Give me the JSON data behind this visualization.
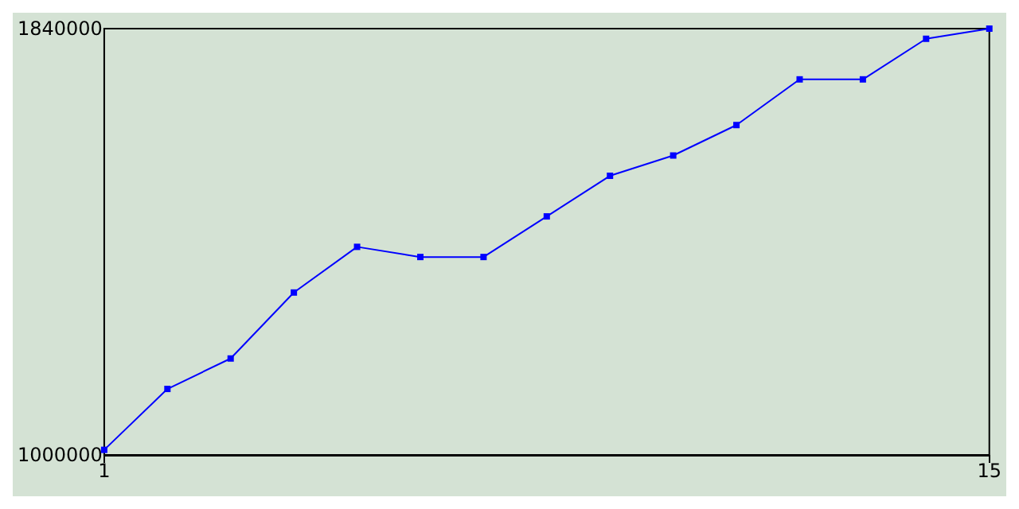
{
  "chart_data": {
    "type": "line",
    "x": [
      1,
      2,
      3,
      4,
      5,
      6,
      7,
      8,
      9,
      10,
      11,
      12,
      13,
      14,
      15
    ],
    "series": [
      {
        "color": "#0000ff",
        "values": [
          1010000,
          1130000,
          1190000,
          1320000,
          1410000,
          1390000,
          1390000,
          1470000,
          1550000,
          1590000,
          1650000,
          1740000,
          1740000,
          1820000,
          1840000
        ]
      }
    ],
    "xlim": [
      1,
      15
    ],
    "xticks": [
      1,
      15
    ],
    "ylim": [
      1000000,
      1840000
    ],
    "yticks": [
      1000000,
      1840000
    ],
    "grid": false,
    "marker": "square",
    "line_style": "solid"
  }
}
